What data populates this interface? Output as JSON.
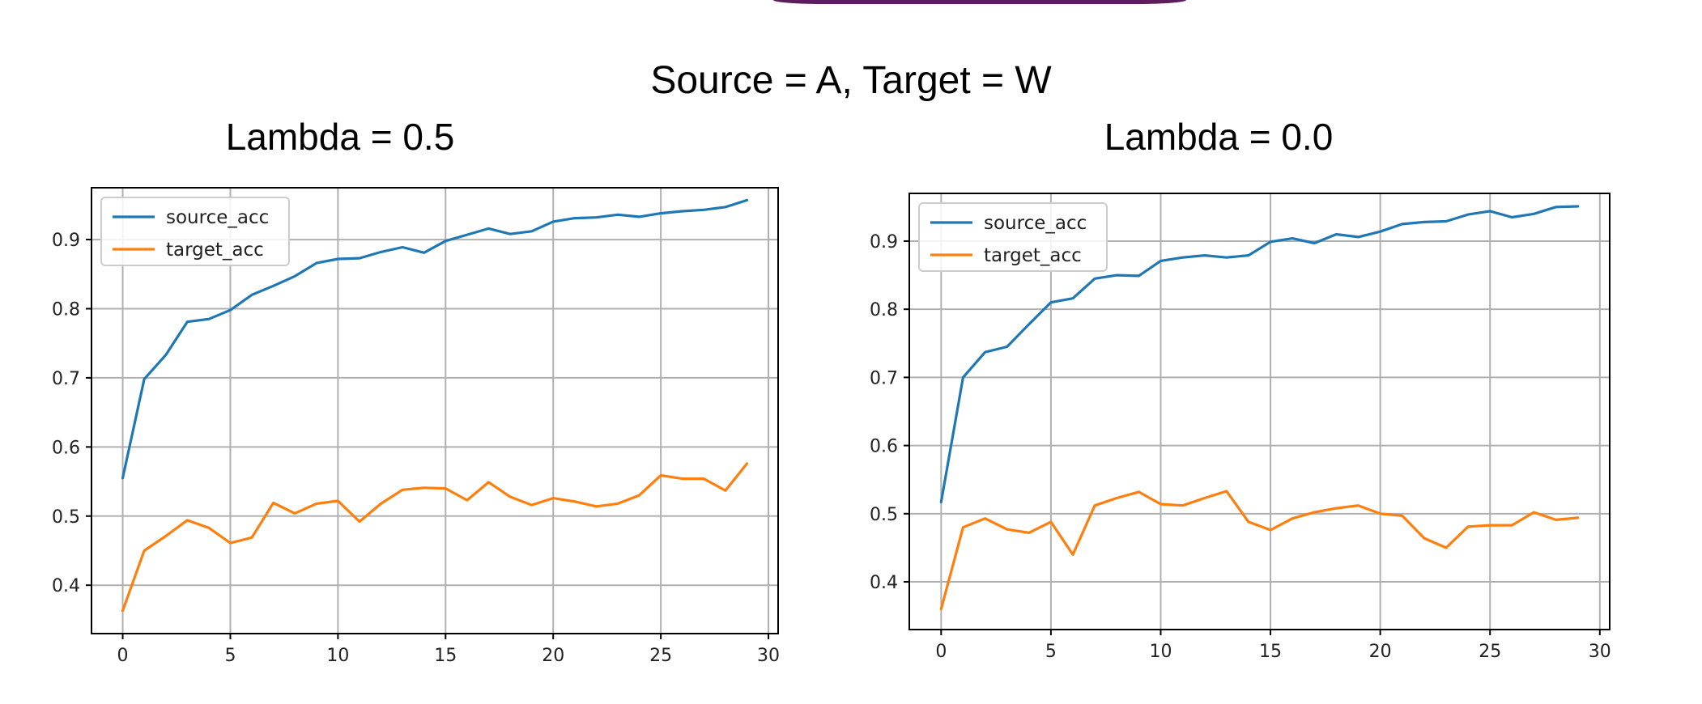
{
  "title": "Source = A, Target = W",
  "colors": {
    "source": "#1f77b4",
    "target": "#ff7f0e",
    "grid": "#b0b0b0",
    "axis": "#000000",
    "accent": "#5b1d5e"
  },
  "chart_data": [
    {
      "type": "line",
      "title": "Lambda = 0.5",
      "xlabel": "",
      "ylabel": "",
      "xlim": [
        -1.45,
        30.45
      ],
      "ylim": [
        0.33,
        0.975
      ],
      "xticks": [
        0,
        5,
        10,
        15,
        20,
        25,
        30
      ],
      "yticks": [
        0.4,
        0.5,
        0.6,
        0.7,
        0.8,
        0.9
      ],
      "grid": true,
      "legend": "top-left",
      "series": [
        {
          "name": "source_acc",
          "color": "#1f77b4",
          "x": [
            0,
            1,
            2,
            3,
            4,
            5,
            6,
            7,
            8,
            9,
            10,
            11,
            12,
            13,
            14,
            15,
            16,
            17,
            18,
            19,
            20,
            21,
            22,
            23,
            24,
            25,
            26,
            27,
            28,
            29
          ],
          "values": [
            0.555,
            0.698,
            0.733,
            0.781,
            0.785,
            0.798,
            0.82,
            0.833,
            0.847,
            0.866,
            0.872,
            0.873,
            0.882,
            0.889,
            0.881,
            0.898,
            0.907,
            0.916,
            0.908,
            0.912,
            0.926,
            0.931,
            0.932,
            0.936,
            0.933,
            0.938,
            0.941,
            0.943,
            0.947,
            0.957
          ]
        },
        {
          "name": "target_acc",
          "color": "#ff7f0e",
          "x": [
            0,
            1,
            2,
            3,
            4,
            5,
            6,
            7,
            8,
            9,
            10,
            11,
            12,
            13,
            14,
            15,
            16,
            17,
            18,
            19,
            20,
            21,
            22,
            23,
            24,
            25,
            26,
            27,
            28,
            29
          ],
          "values": [
            0.363,
            0.45,
            0.471,
            0.494,
            0.483,
            0.461,
            0.469,
            0.519,
            0.504,
            0.518,
            0.522,
            0.492,
            0.518,
            0.538,
            0.541,
            0.54,
            0.523,
            0.549,
            0.528,
            0.516,
            0.526,
            0.521,
            0.514,
            0.518,
            0.53,
            0.559,
            0.554,
            0.554,
            0.537,
            0.576
          ]
        }
      ]
    },
    {
      "type": "line",
      "title": "Lambda = 0.0",
      "xlabel": "",
      "ylabel": "",
      "xlim": [
        -1.45,
        30.45
      ],
      "ylim": [
        0.33,
        0.97
      ],
      "xticks": [
        0,
        5,
        10,
        15,
        20,
        25,
        30
      ],
      "yticks": [
        0.4,
        0.5,
        0.6,
        0.7,
        0.8,
        0.9
      ],
      "grid": true,
      "legend": "top-left",
      "series": [
        {
          "name": "source_acc",
          "color": "#1f77b4",
          "x": [
            0,
            1,
            2,
            3,
            4,
            5,
            6,
            7,
            8,
            9,
            10,
            11,
            12,
            13,
            14,
            15,
            16,
            17,
            18,
            19,
            20,
            21,
            22,
            23,
            24,
            25,
            26,
            27,
            28,
            29
          ],
          "values": [
            0.517,
            0.7,
            0.737,
            0.745,
            0.778,
            0.81,
            0.816,
            0.845,
            0.85,
            0.849,
            0.871,
            0.876,
            0.879,
            0.876,
            0.879,
            0.899,
            0.904,
            0.897,
            0.91,
            0.906,
            0.914,
            0.925,
            0.928,
            0.929,
            0.939,
            0.944,
            0.935,
            0.94,
            0.95,
            0.951
          ]
        },
        {
          "name": "target_acc",
          "color": "#ff7f0e",
          "x": [
            0,
            1,
            2,
            3,
            4,
            5,
            6,
            7,
            8,
            9,
            10,
            11,
            12,
            13,
            14,
            15,
            16,
            17,
            18,
            19,
            20,
            21,
            22,
            23,
            24,
            25,
            26,
            27,
            28,
            29
          ],
          "values": [
            0.36,
            0.48,
            0.493,
            0.477,
            0.472,
            0.488,
            0.44,
            0.512,
            0.523,
            0.532,
            0.514,
            0.512,
            0.523,
            0.533,
            0.488,
            0.476,
            0.493,
            0.502,
            0.508,
            0.512,
            0.5,
            0.497,
            0.464,
            0.45,
            0.481,
            0.483,
            0.483,
            0.502,
            0.491,
            0.494
          ]
        }
      ]
    }
  ]
}
